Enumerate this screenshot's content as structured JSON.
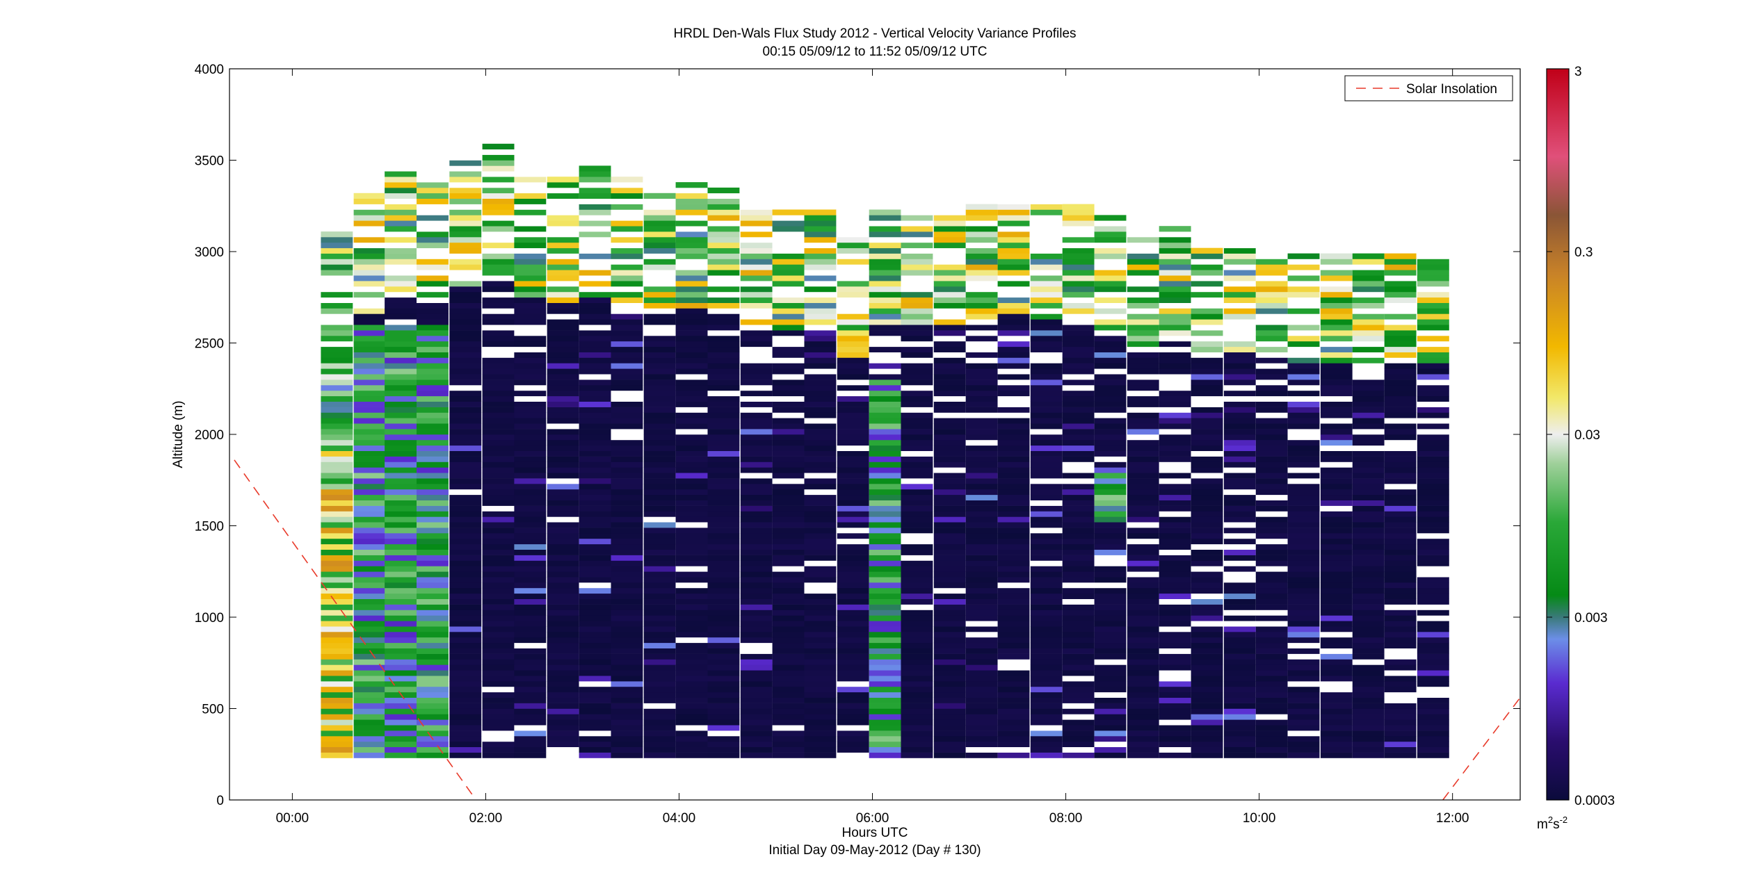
{
  "chart_data": {
    "type": "heatmap",
    "title": "HRDL Den-Wals Flux Study 2012 - Vertical Velocity Variance Profiles",
    "subtitle": "00:15 05/09/12 to 11:52 05/09/12  UTC",
    "xlabel": "Hours UTC",
    "xlabel2": "Initial Day 09-May-2012 (Day # 130)",
    "ylabel": "Altitude (m)",
    "xlim": [
      -0.65,
      12.7
    ],
    "ylim": [
      0,
      4000
    ],
    "x_ticks": [
      0,
      2,
      4,
      6,
      8,
      10,
      12
    ],
    "x_tick_labels": [
      "00:00",
      "02:00",
      "04:00",
      "06:00",
      "08:00",
      "10:00",
      "12:00"
    ],
    "y_ticks": [
      0,
      500,
      1000,
      1500,
      2000,
      2500,
      3000,
      3500,
      4000
    ],
    "y_tick_labels": [
      "0",
      "500",
      "1000",
      "1500",
      "2000",
      "2500",
      "3000",
      "3500",
      "4000"
    ],
    "colorbar": {
      "scale": "log",
      "range": [
        0.0003,
        3
      ],
      "ticks": [
        0.0003,
        0.003,
        0.03,
        0.3,
        3
      ],
      "tick_labels": [
        "0.0003",
        "0.003",
        "0.03",
        "0.3",
        "3"
      ],
      "unit_base": "m",
      "unit_base_exp": "2",
      "unit_mid": "s",
      "unit_mid_exp": "-2"
    },
    "legend": {
      "entries": [
        "Solar Insolation"
      ],
      "position": "top-right"
    },
    "profile_times_hours": [
      0.46,
      0.8,
      1.12,
      1.45,
      1.79,
      2.13,
      2.46,
      2.8,
      3.13,
      3.46,
      3.8,
      4.13,
      4.46,
      4.8,
      5.13,
      5.46,
      5.8,
      6.13,
      6.46,
      6.8,
      7.13,
      7.46,
      7.8,
      8.13,
      8.46,
      8.8,
      9.13,
      9.46,
      9.8,
      10.13,
      10.46,
      10.8,
      11.13,
      11.46,
      11.8
    ],
    "profile_tops_m": [
      3100,
      3310,
      3460,
      3400,
      3530,
      3570,
      3430,
      3400,
      3460,
      3400,
      3310,
      3370,
      3330,
      3260,
      3220,
      3220,
      3220,
      3230,
      3260,
      3250,
      3250,
      3320,
      3290,
      3250,
      3190,
      3090,
      3140,
      3010,
      3050,
      3030,
      2990,
      2990,
      2970,
      2980,
      2980
    ],
    "profile_base_m": 230,
    "solar_insolation_line": [
      [
        -0.6,
        1860
      ],
      [
        1.9,
        0
      ]
    ],
    "solar_insolation_line_right": [
      [
        11.9,
        0
      ],
      [
        12.7,
        560
      ]
    ],
    "colors": {
      "background_noise": "#0b0b3b",
      "missing": "#ffffff",
      "solar_line": "#e83a2a"
    }
  }
}
